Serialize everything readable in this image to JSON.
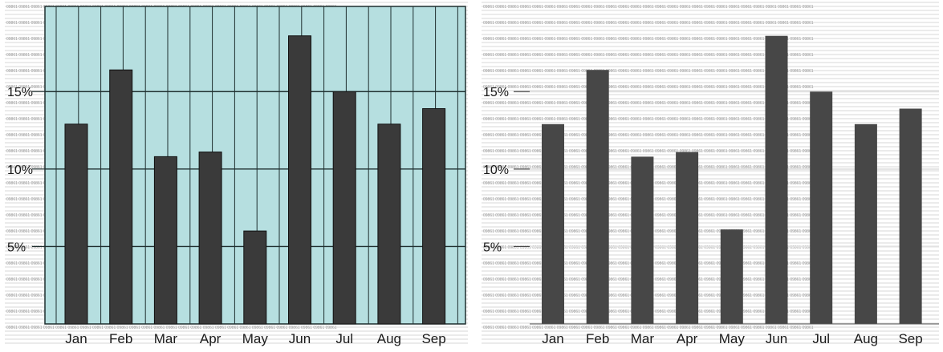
{
  "colors": {
    "panel_bg_left": "#b6dfe0",
    "bar_left": "#3a3a3a",
    "bar_right": "#474747",
    "grid_left": "#1f2f2f",
    "gridline_right": "#e2e2e2",
    "texture_lines": "#b0b0b0",
    "texture_text": "#9a9a9a",
    "axis_text": "#1a1a1a"
  },
  "texture_glyphs": "09861 09861 09861 09861 09861 09861 09861 09861 09861 09861 09861 09861 09861 09861 09861 09861 09861 09861 09861 09861 09861 09861 09861 09861 09861 09861 09861",
  "chart_data": [
    {
      "type": "bar",
      "title": "",
      "xlabel": "",
      "ylabel": "",
      "categories": [
        "Jan",
        "Feb",
        "Mar",
        "Apr",
        "May",
        "Jun",
        "Jul",
        "Aug",
        "Sep"
      ],
      "values": [
        12.9,
        16.4,
        10.8,
        11.1,
        6.0,
        18.6,
        15.0,
        12.9,
        13.9
      ],
      "ylim": [
        0,
        20.5
      ],
      "yticks": [
        5,
        10,
        15
      ],
      "ytick_labels": [
        "5%",
        "10%",
        "15%"
      ],
      "grid": true,
      "vertical_grid": true,
      "background": "light teal"
    },
    {
      "type": "bar",
      "title": "",
      "xlabel": "",
      "ylabel": "",
      "categories": [
        "Jan",
        "Feb",
        "Mar",
        "Apr",
        "May",
        "Jun",
        "Jul",
        "Aug",
        "Sep"
      ],
      "values": [
        12.9,
        16.4,
        10.8,
        11.1,
        6.1,
        18.6,
        15.0,
        12.9,
        13.9
      ],
      "ylim": [
        0,
        20.5
      ],
      "yticks": [
        5,
        10,
        15
      ],
      "ytick_labels": [
        "5%",
        "10%",
        "15%"
      ],
      "grid": true,
      "vertical_grid": false,
      "background": "striped grey"
    }
  ]
}
